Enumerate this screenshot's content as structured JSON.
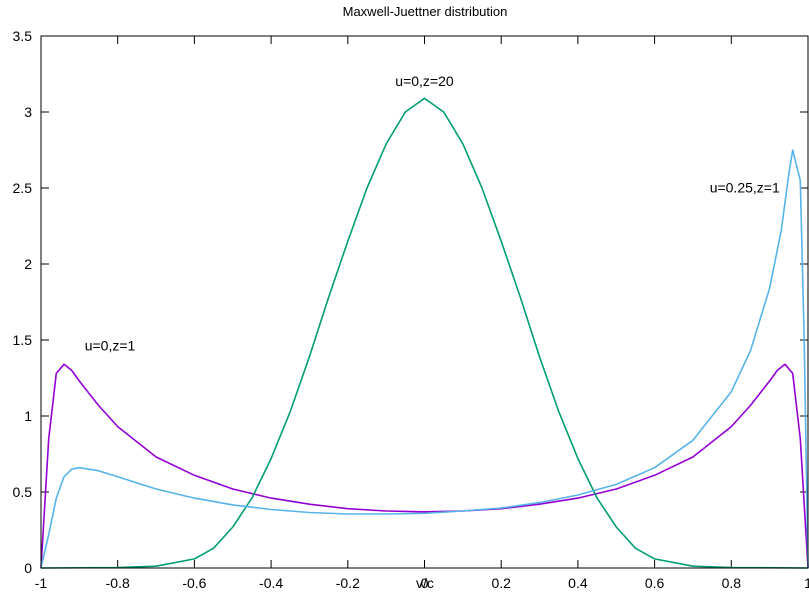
{
  "chart_data": {
    "type": "line",
    "title": "Maxwell-Juettner distribution",
    "xlabel": "v/c",
    "ylabel": "",
    "xlim": [
      -1,
      1
    ],
    "ylim": [
      0,
      3.5
    ],
    "x_ticks": [
      "-1",
      "-0.8",
      "-0.6",
      "-0.4",
      "-0.2",
      "0",
      "0.2",
      "0.4",
      "0.6",
      "0.8",
      "1"
    ],
    "y_ticks": [
      "0",
      "0.5",
      "1",
      "1.5",
      "2",
      "2.5",
      "3",
      "3.5"
    ],
    "grid": false,
    "legend": "none",
    "series": [
      {
        "color": "#9400d3",
        "points": [
          [
            -1,
            0
          ],
          [
            -0.98,
            0.85
          ],
          [
            -0.96,
            1.28
          ],
          [
            -0.94,
            1.34
          ],
          [
            -0.92,
            1.3
          ],
          [
            -0.9,
            1.23
          ],
          [
            -0.85,
            1.07
          ],
          [
            -0.8,
            0.93
          ],
          [
            -0.7,
            0.73
          ],
          [
            -0.6,
            0.61
          ],
          [
            -0.5,
            0.52
          ],
          [
            -0.4,
            0.46
          ],
          [
            -0.3,
            0.42
          ],
          [
            -0.2,
            0.39
          ],
          [
            -0.1,
            0.375
          ],
          [
            0,
            0.37
          ],
          [
            0.1,
            0.375
          ],
          [
            0.2,
            0.39
          ],
          [
            0.3,
            0.42
          ],
          [
            0.4,
            0.46
          ],
          [
            0.5,
            0.52
          ],
          [
            0.6,
            0.61
          ],
          [
            0.7,
            0.73
          ],
          [
            0.8,
            0.93
          ],
          [
            0.85,
            1.07
          ],
          [
            0.9,
            1.23
          ],
          [
            0.92,
            1.3
          ],
          [
            0.94,
            1.34
          ],
          [
            0.96,
            1.28
          ],
          [
            0.98,
            0.85
          ],
          [
            1,
            0
          ]
        ]
      },
      {
        "color": "#009e73",
        "points": [
          [
            -1,
            0
          ],
          [
            -0.8,
            0.003
          ],
          [
            -0.7,
            0.012
          ],
          [
            -0.6,
            0.06
          ],
          [
            -0.55,
            0.13
          ],
          [
            -0.5,
            0.27
          ],
          [
            -0.45,
            0.46
          ],
          [
            -0.4,
            0.72
          ],
          [
            -0.35,
            1.03
          ],
          [
            -0.3,
            1.39
          ],
          [
            -0.25,
            1.78
          ],
          [
            -0.2,
            2.15
          ],
          [
            -0.15,
            2.5
          ],
          [
            -0.1,
            2.79
          ],
          [
            -0.05,
            3.0
          ],
          [
            0,
            3.09
          ],
          [
            0.05,
            3.0
          ],
          [
            0.1,
            2.79
          ],
          [
            0.15,
            2.5
          ],
          [
            0.2,
            2.15
          ],
          [
            0.25,
            1.78
          ],
          [
            0.3,
            1.39
          ],
          [
            0.35,
            1.03
          ],
          [
            0.4,
            0.72
          ],
          [
            0.45,
            0.46
          ],
          [
            0.5,
            0.27
          ],
          [
            0.55,
            0.13
          ],
          [
            0.6,
            0.06
          ],
          [
            0.7,
            0.012
          ],
          [
            0.8,
            0.003
          ],
          [
            1,
            0
          ]
        ]
      },
      {
        "color": "#56b4e9",
        "points": [
          [
            -1,
            0
          ],
          [
            -0.98,
            0.22
          ],
          [
            -0.96,
            0.46
          ],
          [
            -0.94,
            0.6
          ],
          [
            -0.92,
            0.65
          ],
          [
            -0.9,
            0.66
          ],
          [
            -0.85,
            0.64
          ],
          [
            -0.8,
            0.6
          ],
          [
            -0.7,
            0.52
          ],
          [
            -0.6,
            0.46
          ],
          [
            -0.5,
            0.415
          ],
          [
            -0.4,
            0.385
          ],
          [
            -0.3,
            0.365
          ],
          [
            -0.2,
            0.355
          ],
          [
            -0.1,
            0.355
          ],
          [
            0,
            0.36
          ],
          [
            0.1,
            0.375
          ],
          [
            0.2,
            0.395
          ],
          [
            0.3,
            0.43
          ],
          [
            0.4,
            0.48
          ],
          [
            0.5,
            0.55
          ],
          [
            0.6,
            0.66
          ],
          [
            0.7,
            0.84
          ],
          [
            0.8,
            1.16
          ],
          [
            0.85,
            1.43
          ],
          [
            0.9,
            1.84
          ],
          [
            0.93,
            2.22
          ],
          [
            0.95,
            2.59
          ],
          [
            0.96,
            2.75
          ],
          [
            0.98,
            2.55
          ],
          [
            0.99,
            1.5
          ],
          [
            1,
            0
          ]
        ]
      }
    ],
    "annotations": [
      {
        "text": "u=0,z=20",
        "x": 0.0,
        "y": 3.17
      },
      {
        "text": "u=0,z=1",
        "x": -0.82,
        "y": 1.43
      },
      {
        "text": "u=0.25,z=1",
        "x": 0.835,
        "y": 2.47
      }
    ]
  }
}
